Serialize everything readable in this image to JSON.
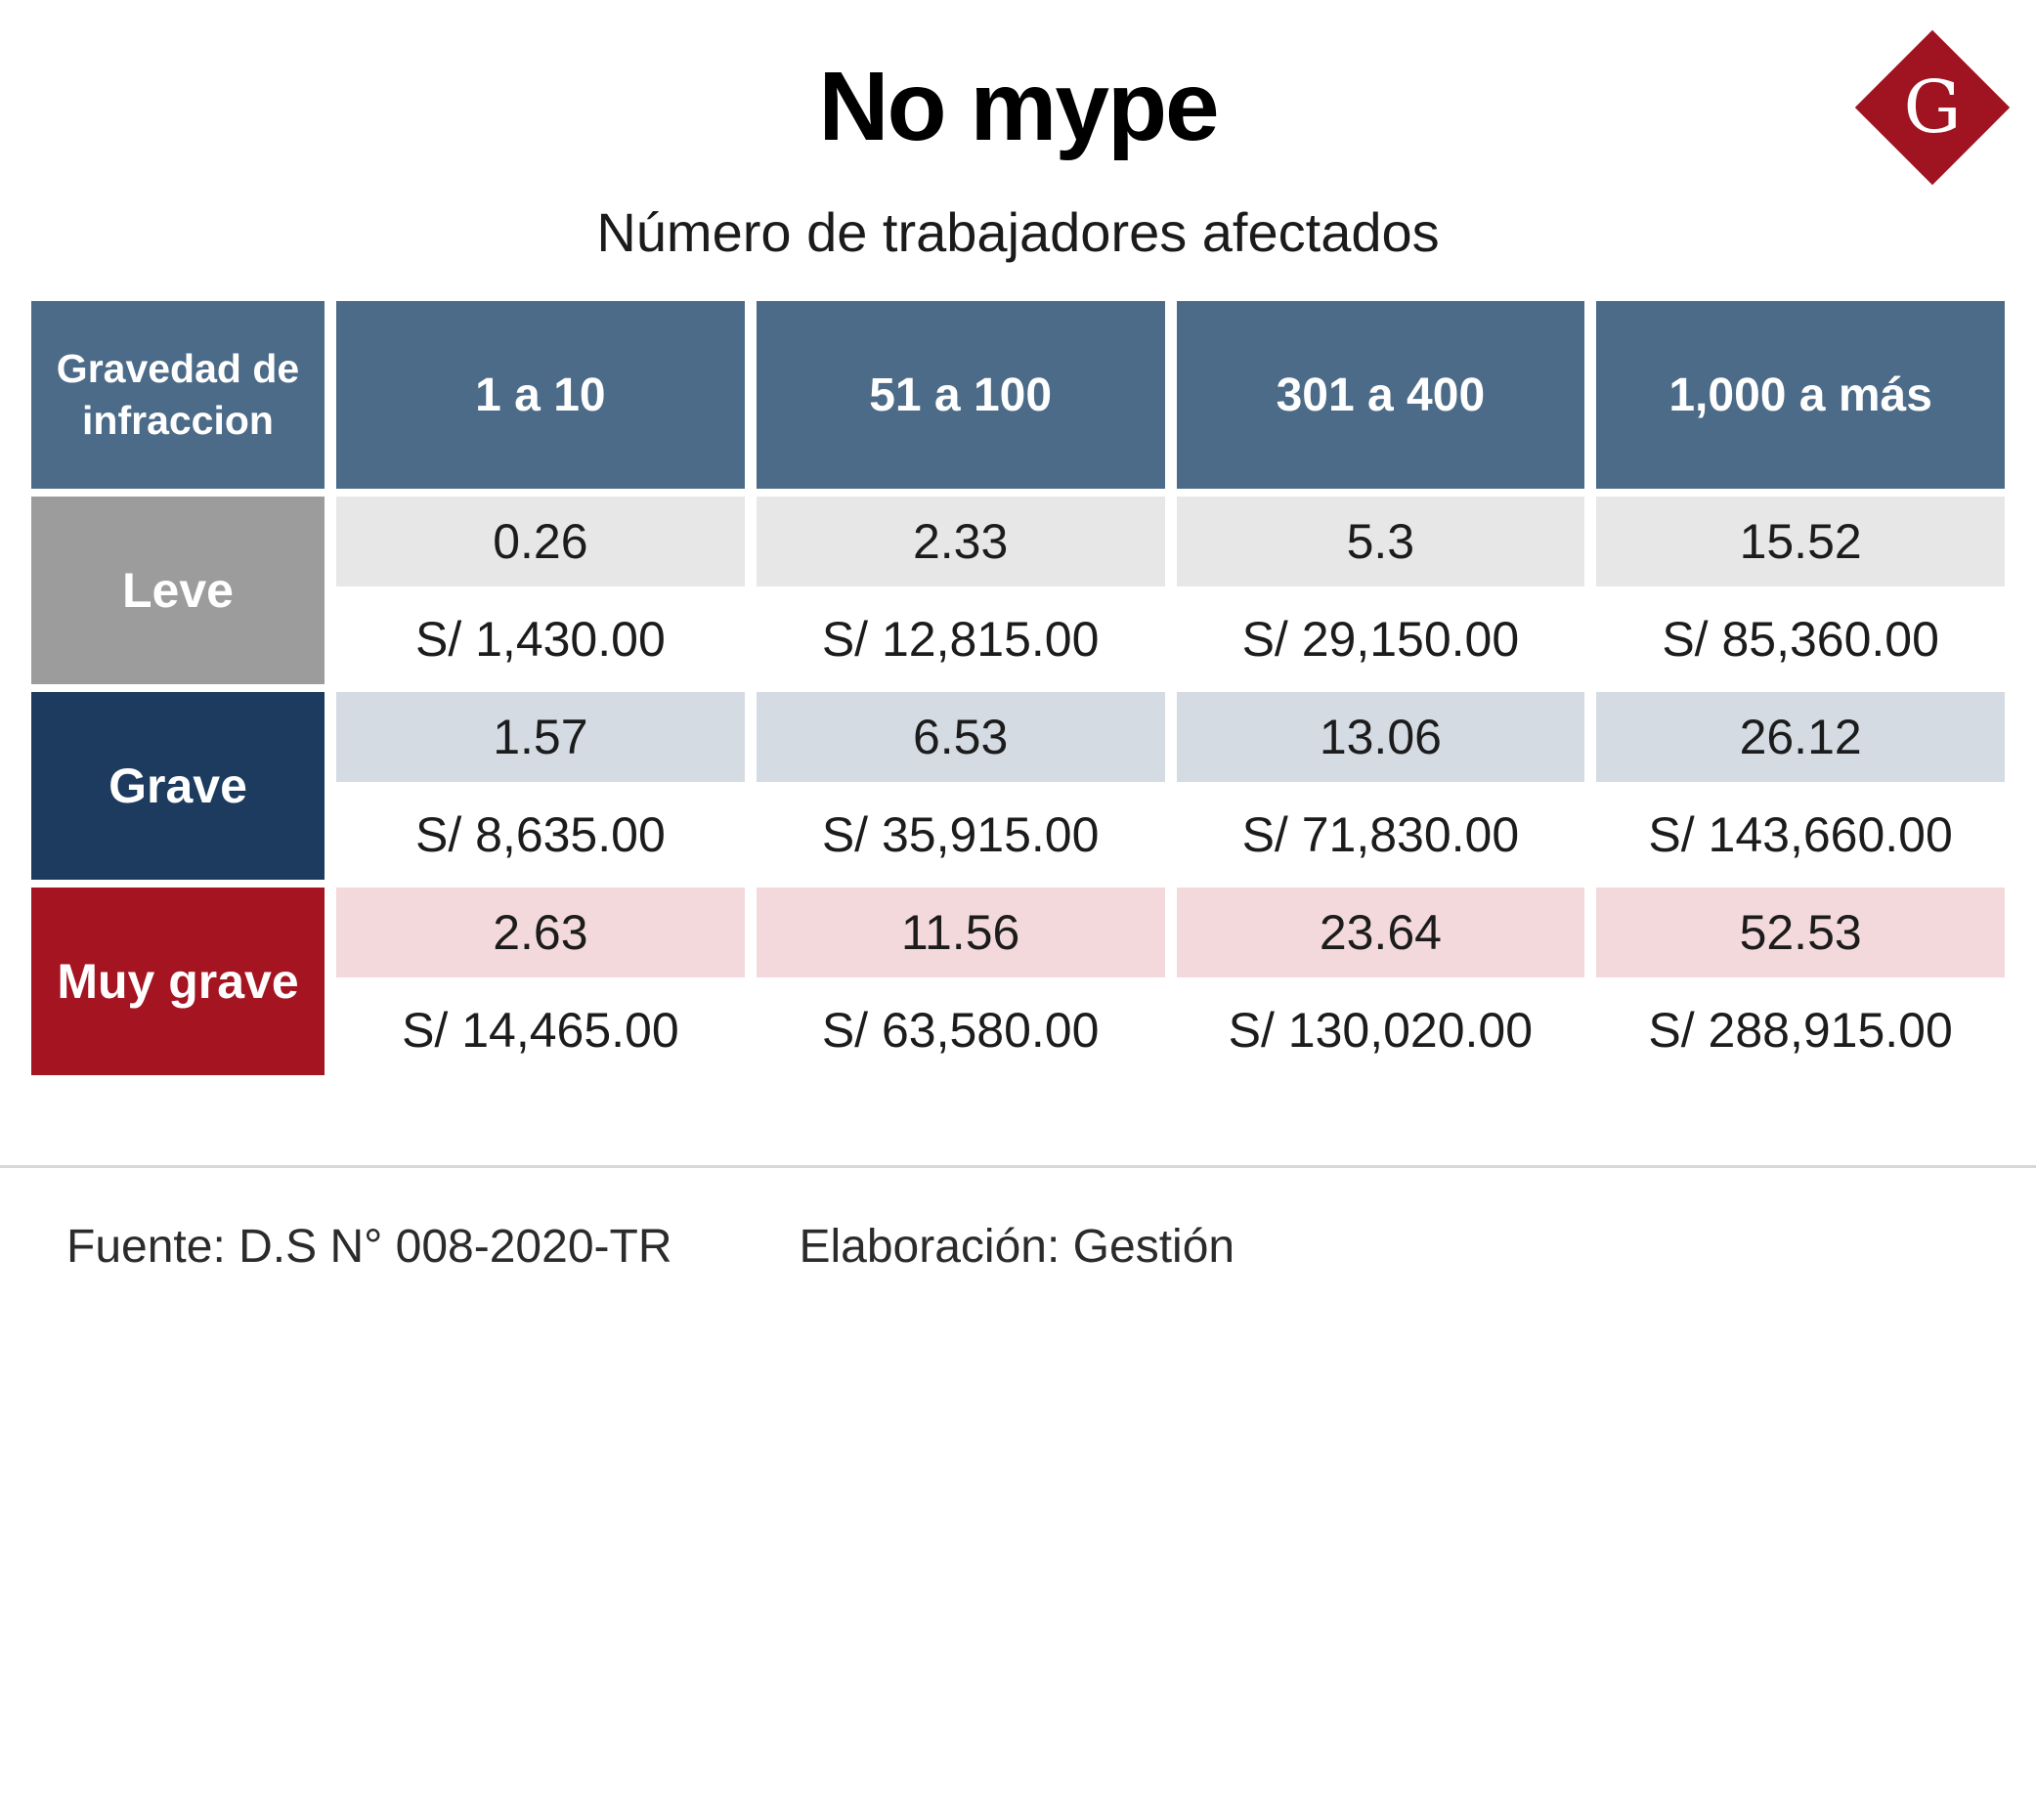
{
  "header": {
    "title": "No mype",
    "subtitle": "Número de trabajadores afectados",
    "logo_letter": "G"
  },
  "table": {
    "corner_label": "Gravedad de infraccion",
    "columns": [
      "1 a 10",
      "51 a 100",
      "301 a 400",
      "1,000 a más"
    ],
    "rows": [
      {
        "label": "Leve",
        "uit": [
          "0.26",
          "2.33",
          "5.3",
          "15.52"
        ],
        "soles": [
          "S/ 1,430.00",
          "S/ 12,815.00",
          "S/ 29,150.00",
          "S/ 85,360.00"
        ]
      },
      {
        "label": "Grave",
        "uit": [
          "1.57",
          "6.53",
          "13.06",
          "26.12"
        ],
        "soles": [
          "S/ 8,635.00",
          "S/ 35,915.00",
          "S/ 71,830.00",
          "S/ 143,660.00"
        ]
      },
      {
        "label": "Muy grave",
        "uit": [
          "2.63",
          "11.56",
          "23.64",
          "52.53"
        ],
        "soles": [
          "S/ 14,465.00",
          "S/ 63,580.00",
          "S/ 130,020.00",
          "S/ 288,915.00"
        ]
      }
    ]
  },
  "footer": {
    "source": "Fuente: D.S N° 008-2020-TR",
    "elaboration": "Elaboración: Gestión"
  },
  "colors": {
    "header_bg": "#4b6b88",
    "leve": "#9c9c9c",
    "grave": "#1c3b5e",
    "muy_grave": "#a51421",
    "leve_row": "#e7e7e8",
    "grave_row": "#d4dbe2",
    "muygrave_row": "#f3d9db",
    "logo_red": "#a01320"
  },
  "chart_data": {
    "type": "table",
    "title": "No mype",
    "subtitle": "Número de trabajadores afectados",
    "columns": [
      "Gravedad de infraccion",
      "1 a 10",
      "51 a 100",
      "301 a 400",
      "1,000 a más"
    ],
    "rows": [
      {
        "label": "Leve",
        "uit": [
          0.26,
          2.33,
          5.3,
          15.52
        ],
        "soles": [
          1430.0,
          12815.0,
          29150.0,
          85360.0
        ]
      },
      {
        "label": "Grave",
        "uit": [
          1.57,
          6.53,
          13.06,
          26.12
        ],
        "soles": [
          8635.0,
          35915.0,
          71830.0,
          143660.0
        ]
      },
      {
        "label": "Muy grave",
        "uit": [
          2.63,
          11.56,
          23.64,
          52.53
        ],
        "soles": [
          14465.0,
          63580.0,
          130020.0,
          288915.0
        ]
      }
    ],
    "source": "Fuente: D.S N° 008-2020-TR",
    "elaboration": "Elaboración: Gestión"
  }
}
